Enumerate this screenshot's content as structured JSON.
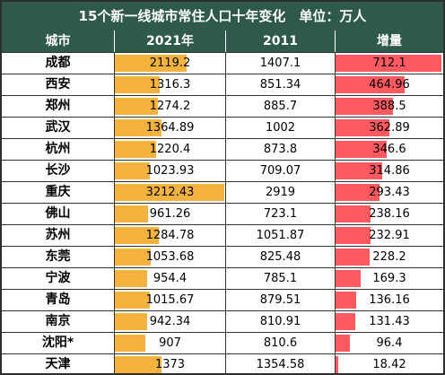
{
  "title": "15个新一线城市常住人口十年变化　单位：万人",
  "headers": [
    "城市",
    "2021年",
    "2011",
    "增量"
  ],
  "colors": {
    "header_bg": "#2f5a4a",
    "bar_2021": "#f4b23f",
    "bar_increase": "#ff5a5f"
  },
  "chart_data": {
    "type": "table",
    "columns": [
      "城市",
      "2021年",
      "2011",
      "增量"
    ],
    "rows": [
      {
        "city": "成都",
        "y2021": "2119.2",
        "y2011": "1407.1",
        "inc": "712.1"
      },
      {
        "city": "西安",
        "y2021": "1316.3",
        "y2011": "851.34",
        "inc": "464.96"
      },
      {
        "city": "郑州",
        "y2021": "1274.2",
        "y2011": "885.7",
        "inc": "388.5"
      },
      {
        "city": "武汉",
        "y2021": "1364.89",
        "y2011": "1002",
        "inc": "362.89"
      },
      {
        "city": "杭州",
        "y2021": "1220.4",
        "y2011": "873.8",
        "inc": "346.6"
      },
      {
        "city": "长沙",
        "y2021": "1023.93",
        "y2011": "709.07",
        "inc": "314.86"
      },
      {
        "city": "重庆",
        "y2021": "3212.43",
        "y2011": "2919",
        "inc": "293.43"
      },
      {
        "city": "佛山",
        "y2021": "961.26",
        "y2011": "723.1",
        "inc": "238.16"
      },
      {
        "city": "苏州",
        "y2021": "1284.78",
        "y2011": "1051.87",
        "inc": "232.91"
      },
      {
        "city": "东莞",
        "y2021": "1053.68",
        "y2011": "825.48",
        "inc": "228.2"
      },
      {
        "city": "宁波",
        "y2021": "954.4",
        "y2011": "785.1",
        "inc": "169.3"
      },
      {
        "city": "青岛",
        "y2021": "1015.67",
        "y2011": "879.51",
        "inc": "136.16"
      },
      {
        "city": "南京",
        "y2021": "942.34",
        "y2011": "810.91",
        "inc": "131.43"
      },
      {
        "city": "沈阳*",
        "y2021": "907",
        "y2011": "810.6",
        "inc": "96.4"
      },
      {
        "city": "天津",
        "y2021": "1373",
        "y2011": "1354.58",
        "inc": "18.42"
      }
    ]
  }
}
